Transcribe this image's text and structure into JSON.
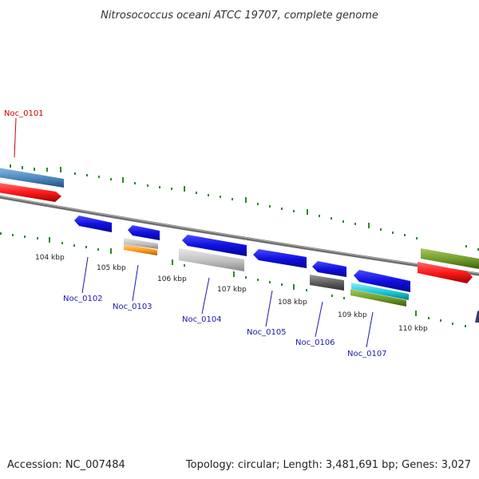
{
  "title": "Nitrosococcus oceani ATCC 19707, complete genome",
  "footer": {
    "accession": "Accession: NC_007484",
    "topology": "Topology: circular; Length: 3,481,691 bp; Genes: 3,027"
  },
  "ticks": [
    "104 kbp",
    "105 kbp",
    "106 kbp",
    "107 kbp",
    "108 kbp",
    "109 kbp",
    "110 kbp"
  ],
  "genes": [
    {
      "id": "Noc_0101",
      "color": "#cc0000"
    },
    {
      "id": "Noc_0102",
      "color": "#1a1aa6"
    },
    {
      "id": "Noc_0103",
      "color": "#1a1aa6"
    },
    {
      "id": "Noc_0104",
      "color": "#1a1aa6"
    },
    {
      "id": "Noc_0105",
      "color": "#1a1aa6"
    },
    {
      "id": "Noc_0106",
      "color": "#1a1aa6"
    },
    {
      "id": "Noc_0107",
      "color": "#1a1aa6"
    }
  ],
  "colors": {
    "forward_cds": "#1010e0",
    "rna": "#ff1a1a",
    "steelblue": "#4a86be",
    "olive": "#6f9a2a",
    "gray": "#b8b8b8",
    "dark_gray": "#5a5a5a",
    "cyan": "#18c8d8",
    "orange": "#ff9a1a",
    "tick_green": "#2a8a2a",
    "backbone": "#777777"
  }
}
